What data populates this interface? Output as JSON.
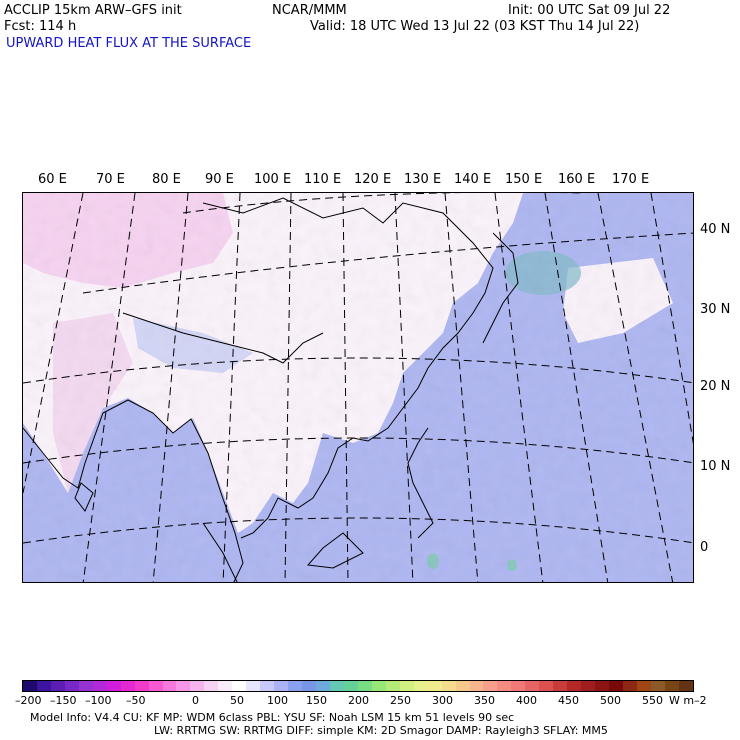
{
  "header": {
    "model_line": "ACCLIP 15km ARW–GFS init",
    "org": "NCAR/MMM",
    "init": "Init: 00 UTC Sat 09 Jul 22",
    "fcst": "Fcst:  114 h",
    "valid": "Valid: 18 UTC Wed 13 Jul 22 (03 KST Thu 14 Jul 22)",
    "field_title": "UPWARD HEAT FLUX AT THE SURFACE"
  },
  "map": {
    "lon_labels": [
      "60 E",
      "70 E",
      "80 E",
      "90 E",
      "100 E",
      "110 E",
      "120 E",
      "130 E",
      "140 E",
      "150 E",
      "160 E",
      "170 E"
    ],
    "lat_labels": [
      "40 N",
      "30 N",
      "20 N",
      "10 N",
      "0"
    ]
  },
  "colorbar": {
    "tick_labels": [
      "–200",
      "–150",
      "–100",
      "–50",
      "0",
      "50",
      "100",
      "150",
      "200",
      "250",
      "300",
      "350",
      "400",
      "450",
      "500",
      "550"
    ],
    "unit": "W m–2",
    "colors": [
      "#1e0a6e",
      "#3c14a0",
      "#5a1eb4",
      "#7828c8",
      "#9632d2",
      "#b428dc",
      "#d21edc",
      "#e628d2",
      "#f03cc8",
      "#f55ad2",
      "#f578dc",
      "#f596e6",
      "#f5b4ec",
      "#f5d2f2",
      "#faebfa",
      "#ffffff",
      "#e6e6ff",
      "#c8c8fa",
      "#aab4f5",
      "#8ca0f0",
      "#7896e6",
      "#6eaadc",
      "#64c8b4",
      "#64d296",
      "#78dc82",
      "#96e678",
      "#b4eb78",
      "#d2f082",
      "#e6f08c",
      "#f0eb8c",
      "#f5dc8c",
      "#f5c88c",
      "#f5b48c",
      "#f5a08c",
      "#f58c82",
      "#f07878",
      "#e66464",
      "#dc5050",
      "#c83c3c",
      "#b42828",
      "#a01e1e",
      "#8c1414",
      "#780a0a",
      "#8c2814",
      "#a04614",
      "#8c5a28",
      "#784614",
      "#643214"
    ]
  },
  "footer": {
    "line1": "Model Info: V4.4     CU: KF     MP: WDM 6class  PBL: YSU       SF: Noah LSM     15 km    51 levels   90 sec",
    "line2": "LW: RRTMG    SW: RRTMG   DIFF: simple KM: 2D Smagor DAMP: Rayleigh3  SFLAY: MM5"
  }
}
